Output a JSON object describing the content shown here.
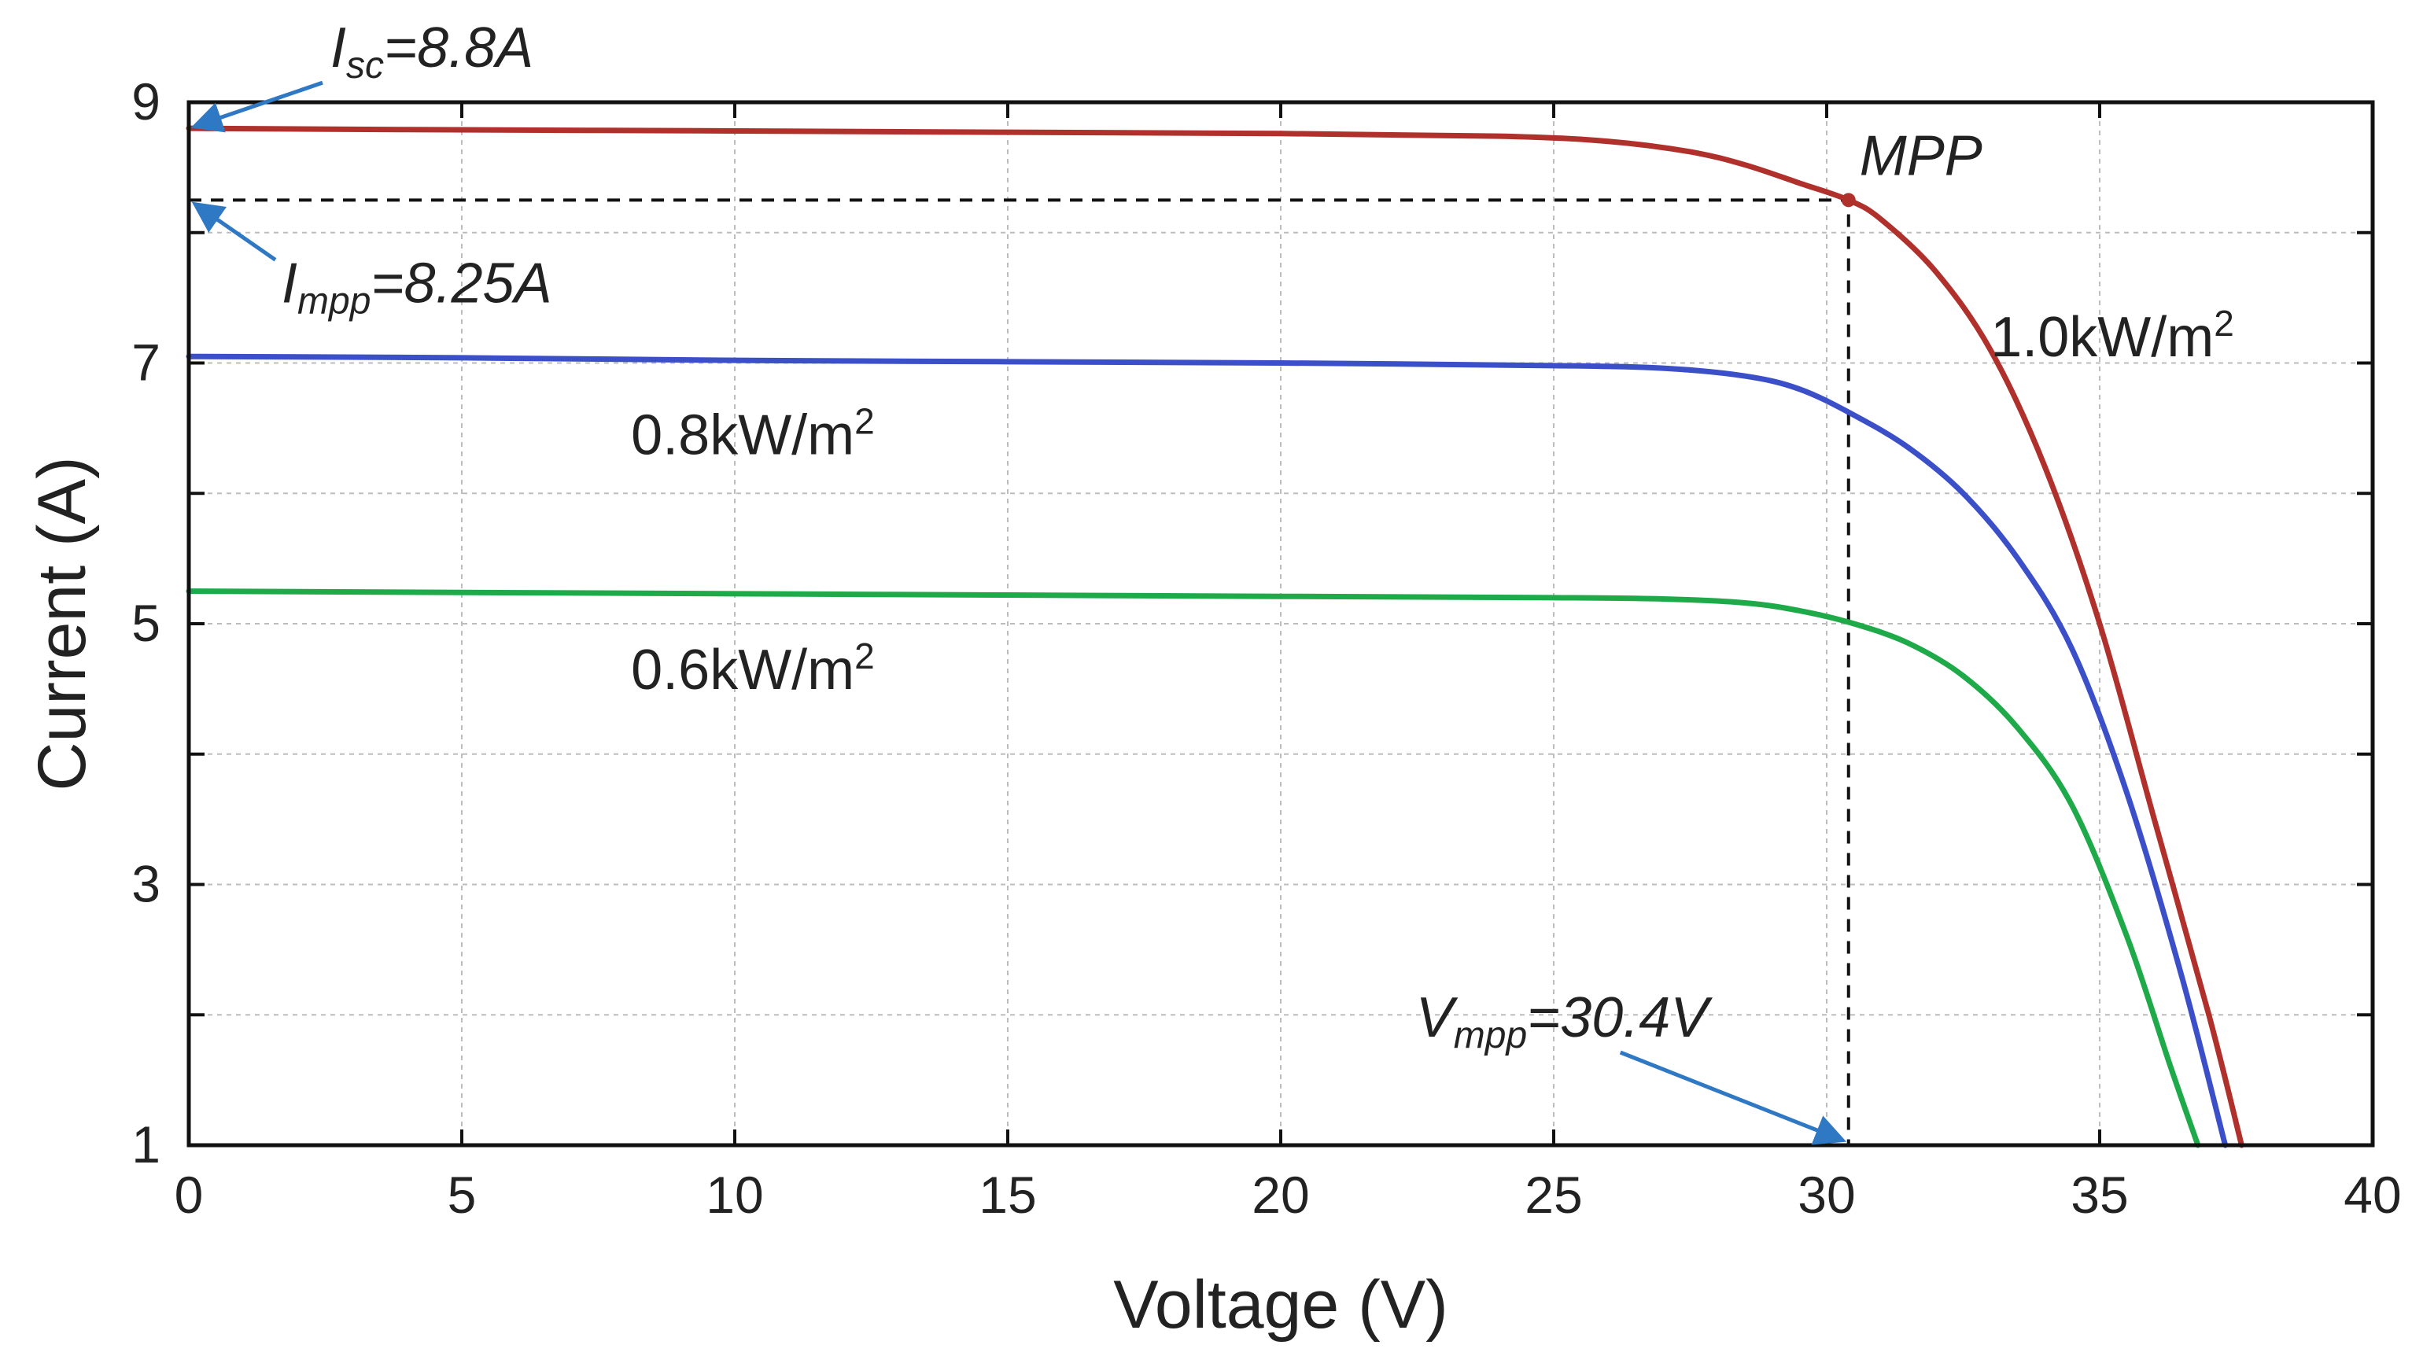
{
  "chart_data": {
    "type": "line",
    "title": "",
    "xlabel": "Voltage (V)",
    "ylabel": "Current (A)",
    "xlim": [
      0,
      40
    ],
    "ylim": [
      1,
      9
    ],
    "xticks": [
      0,
      5,
      10,
      15,
      20,
      25,
      30,
      35,
      40
    ],
    "xtick_labels": [
      "0",
      "5",
      "10",
      "15",
      "20",
      "25",
      "30",
      "35",
      "40"
    ],
    "yticks": [
      1,
      3,
      5,
      7,
      9
    ],
    "ytick_labels": [
      "1",
      "3",
      "5",
      "7",
      "9"
    ],
    "yticks_minor": [
      2,
      4,
      6,
      8
    ],
    "grid": true,
    "series": [
      {
        "name": "1.0kW/m2",
        "label_text": "1.0kW/m",
        "label_sup": "2",
        "color": "#b0302c",
        "x": [
          0,
          4,
          10,
          15,
          20,
          24,
          26,
          27.5,
          28.5,
          29.5,
          30.4,
          31,
          32,
          33,
          34,
          35,
          36,
          37,
          37.6
        ],
        "y": [
          8.8,
          8.79,
          8.78,
          8.77,
          8.76,
          8.74,
          8.7,
          8.62,
          8.52,
          8.38,
          8.25,
          8.1,
          7.7,
          7.1,
          6.2,
          5.0,
          3.5,
          2.0,
          1.0
        ]
      },
      {
        "name": "0.8kW/m2",
        "label_text": "0.8kW/m",
        "label_sup": "2",
        "color": "#3b4fc8",
        "x": [
          0,
          5,
          10,
          15,
          20,
          25,
          27,
          28.5,
          29.5,
          30.5,
          31.5,
          32.5,
          33.5,
          34.5,
          35.5,
          36.5,
          37.3
        ],
        "y": [
          7.05,
          7.04,
          7.02,
          7.01,
          7.0,
          6.98,
          6.96,
          6.9,
          6.8,
          6.6,
          6.35,
          6.0,
          5.5,
          4.8,
          3.7,
          2.3,
          1.0
        ]
      },
      {
        "name": "0.6kW/m2",
        "label_text": "0.6kW/m",
        "label_sup": "2",
        "color": "#1faa4a",
        "x": [
          0,
          5,
          10,
          15,
          20,
          25,
          27,
          28.5,
          29.5,
          30.5,
          31.5,
          32.5,
          33.5,
          34.5,
          35.5,
          36.3,
          36.8
        ],
        "y": [
          5.25,
          5.24,
          5.23,
          5.22,
          5.21,
          5.2,
          5.19,
          5.16,
          5.1,
          5.0,
          4.85,
          4.6,
          4.2,
          3.6,
          2.6,
          1.6,
          1.0
        ]
      }
    ],
    "annotations": {
      "isc": {
        "main": "I",
        "sub": "sc",
        "value": "=8.8A",
        "x": 0,
        "y": 8.8
      },
      "impp": {
        "main": "I",
        "sub": "mpp",
        "value": "=8.25A",
        "x": 0,
        "y": 8.25
      },
      "vmpp": {
        "main": "V",
        "sub": "mpp",
        "value": "=30.4V",
        "x": 30.4,
        "y": 1
      },
      "mpp": {
        "text": "MPP",
        "x": 30.4,
        "y": 8.25
      }
    },
    "arrow_color": "#2f78c4",
    "mpp_marker_color": "#b0302c"
  }
}
